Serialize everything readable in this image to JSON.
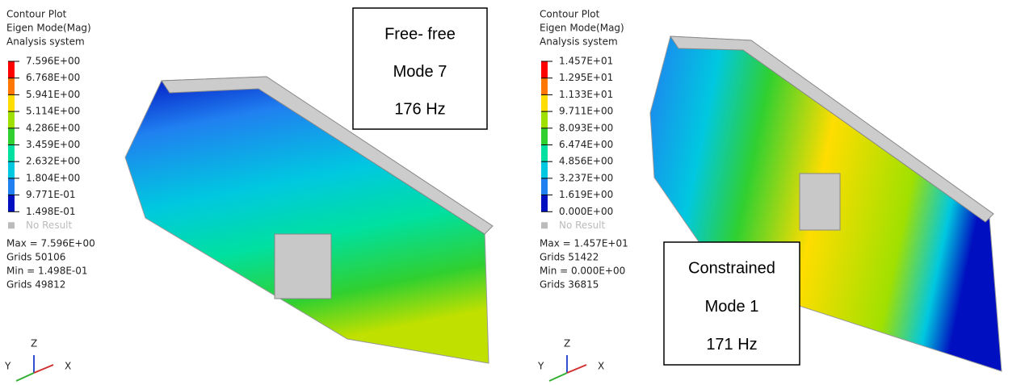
{
  "panels": [
    {
      "header": [
        "Contour Plot",
        "Eigen Mode(Mag)",
        "Analysis system"
      ],
      "legend": [
        "7.596E+00",
        "6.768E+00",
        "5.941E+00",
        "5.114E+00",
        "4.286E+00",
        "3.459E+00",
        "2.632E+00",
        "1.804E+00",
        "9.771E-01",
        "1.498E-01"
      ],
      "no_result": "No Result",
      "stats": [
        "Max = 7.596E+00",
        "Grids 50106",
        "Min = 1.498E-01",
        "Grids 49812"
      ],
      "axes": [
        "Z",
        "Y",
        "X"
      ],
      "box": [
        "Free- free",
        "Mode 7",
        "176 Hz"
      ]
    },
    {
      "header": [
        "Contour Plot",
        "Eigen Mode(Mag)",
        "Analysis system"
      ],
      "legend": [
        "1.457E+01",
        "1.295E+01",
        "1.133E+01",
        "9.711E+00",
        "8.093E+00",
        "6.474E+00",
        "4.856E+00",
        "3.237E+00",
        "1.619E+00",
        "0.000E+00"
      ],
      "no_result": "No Result",
      "stats": [
        "Max = 1.457E+01",
        "Grids 51422",
        "Min = 0.000E+00",
        "Grids 36815"
      ],
      "axes": [
        "Z",
        "Y",
        "X"
      ],
      "box": [
        "Constrained",
        "Mode 1",
        "171 Hz"
      ]
    }
  ]
}
